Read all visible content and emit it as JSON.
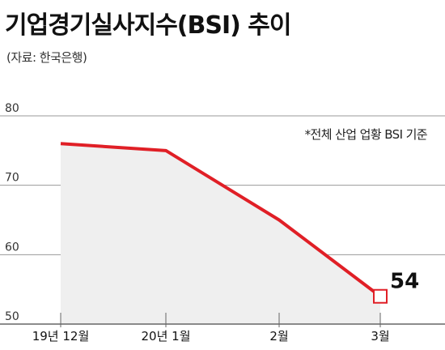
{
  "title": "기업경기실사지수(BSI) 추이",
  "source": "(자료: 한국은행)",
  "note": "*전체 산업 업황 BSI 기준",
  "colors": {
    "line": "#e01f26",
    "area": "#efefef",
    "grid": "#999999",
    "axis": "#666666"
  },
  "chart_data": {
    "type": "line",
    "title": "기업경기실사지수(BSI) 추이",
    "xlabel": "",
    "ylabel": "",
    "categories": [
      "19년 12월",
      "20년 1월",
      "2월",
      "3월"
    ],
    "series": [
      {
        "values": [
          76,
          75,
          65,
          54
        ]
      }
    ],
    "ylim": [
      50,
      80
    ],
    "yticks": [
      50,
      60,
      70,
      80
    ],
    "grid": true,
    "legend": "none",
    "fill_area": true,
    "annotations": [
      {
        "category": "3월",
        "value": 54,
        "label": "54",
        "marker": "square"
      }
    ]
  }
}
